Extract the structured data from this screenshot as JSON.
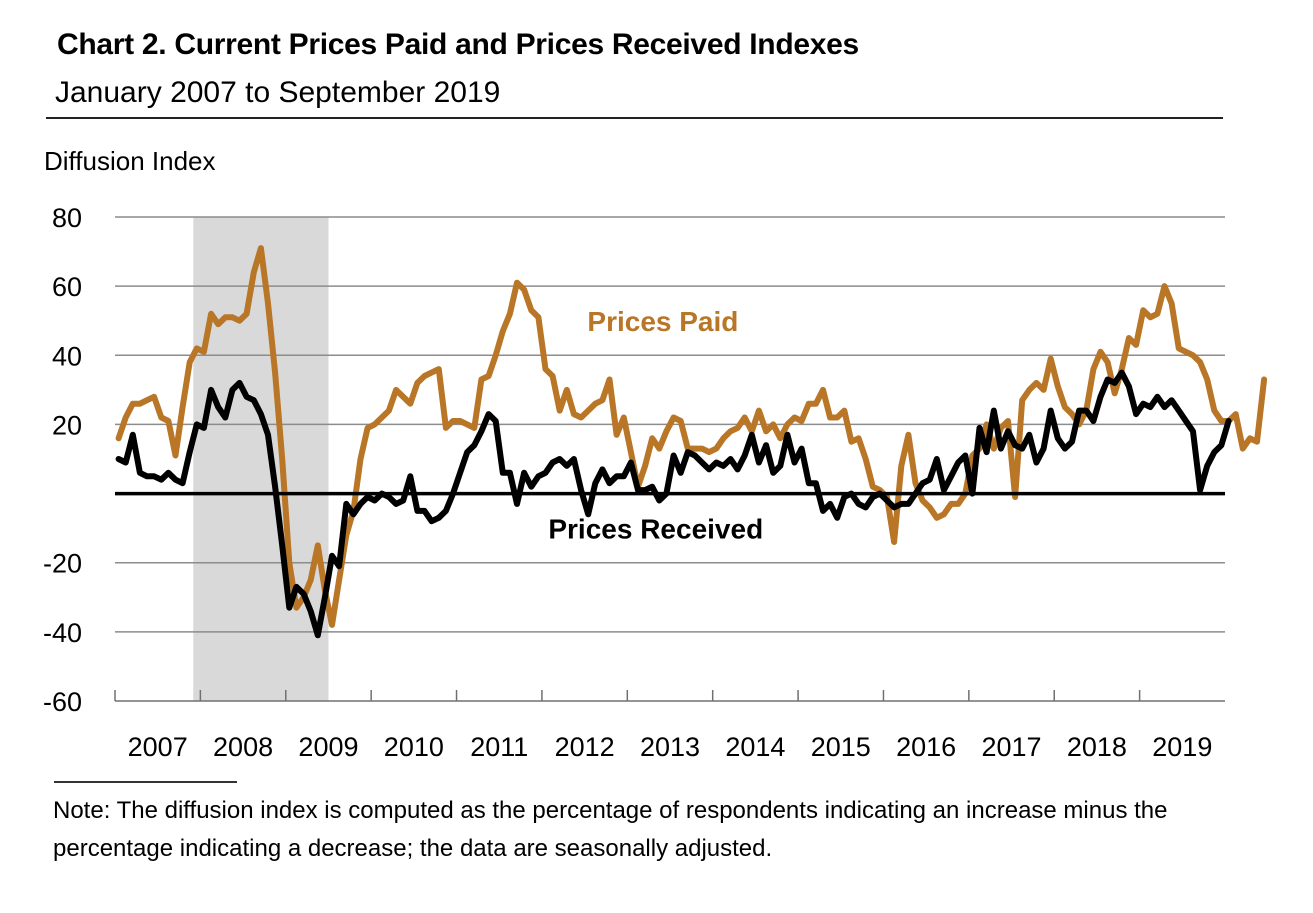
{
  "header": {
    "title": "Chart 2. Current Prices Paid and Prices Received Indexes",
    "subtitle": "January 2007 to September 2019"
  },
  "note": "Note: The diffusion index is computed as the percentage of respondents indicating an increase minus the percentage indicating a decrease; the data are seasonally adjusted.",
  "chart_data": {
    "type": "line",
    "title": "Chart 2. Current Prices Paid and Prices Received Indexes",
    "subtitle": "January 2007 to September 2019",
    "ylabel": "Diffusion Index",
    "xlabel": "",
    "ylim": [
      -60,
      80
    ],
    "yticks": [
      80,
      60,
      40,
      20,
      0,
      -20,
      -40,
      -60
    ],
    "xlim": [
      "2007-01",
      "2019-12"
    ],
    "xtick_labels": [
      "2007",
      "2008",
      "2009",
      "2010",
      "2011",
      "2012",
      "2013",
      "2014",
      "2015",
      "2016",
      "2017",
      "2018",
      "2019"
    ],
    "grid": "horizontal",
    "zero_line": true,
    "frequency": "monthly",
    "start": "2007-01",
    "end": "2019-09",
    "shaded_regions": [
      {
        "label": "recession",
        "from": "2007-12",
        "to": "2009-06",
        "color": "#d9d9d9"
      }
    ],
    "annotations": [
      {
        "text": "Prices Paid",
        "series": "Prices Paid",
        "at": {
          "x": "2013-06",
          "y": 47
        }
      },
      {
        "text": "Prices Received",
        "series": "Prices Received",
        "at": {
          "x": "2013-05",
          "y": -13
        }
      }
    ],
    "series": [
      {
        "name": "Prices Paid",
        "color": "#b87626",
        "values": [
          16,
          22,
          26,
          26,
          27,
          28,
          22,
          21,
          11,
          25,
          38,
          42,
          41,
          52,
          49,
          51,
          51,
          50,
          52,
          64,
          71,
          55,
          35,
          10,
          -20,
          -33,
          -30,
          -25,
          -15,
          -28,
          -38,
          -25,
          -12,
          -5,
          10,
          19,
          20,
          22,
          24,
          30,
          28,
          26,
          32,
          34,
          35,
          36,
          19,
          21,
          21,
          20,
          19,
          33,
          34,
          40,
          47,
          52,
          61,
          59,
          53,
          51,
          36,
          34,
          24,
          30,
          23,
          22,
          24,
          26,
          27,
          33,
          17,
          22,
          12,
          2,
          8,
          16,
          13,
          18,
          22,
          21,
          13,
          13,
          13,
          12,
          13,
          16,
          18,
          19,
          22,
          18,
          24,
          18,
          20,
          16,
          20,
          22,
          21,
          26,
          26,
          30,
          22,
          22,
          24,
          15,
          16,
          10,
          2,
          1,
          -1,
          -14,
          8,
          17,
          3,
          -2,
          -4,
          -7,
          -6,
          -3,
          -3,
          0,
          11,
          13,
          20,
          13,
          19,
          21,
          -1,
          27,
          30,
          32,
          30,
          39,
          31,
          25,
          23,
          20,
          24,
          36,
          41,
          38,
          29,
          36,
          45,
          43,
          53,
          51,
          52,
          60,
          55,
          42,
          41,
          40,
          38,
          33,
          24,
          21,
          21,
          23,
          13,
          16,
          15,
          33
        ]
      },
      {
        "name": "Prices Received",
        "color": "#000000",
        "values": [
          10,
          9,
          17,
          6,
          5,
          5,
          4,
          6,
          4,
          3,
          12,
          20,
          19,
          30,
          25,
          22,
          30,
          32,
          28,
          27,
          23,
          17,
          2,
          -15,
          -33,
          -27,
          -29,
          -34,
          -41,
          -30,
          -18,
          -21,
          -3,
          -6,
          -3,
          -1,
          -2,
          0,
          -1,
          -3,
          -2,
          5,
          -5,
          -5,
          -8,
          -7,
          -5,
          0,
          6,
          12,
          14,
          18,
          23,
          21,
          6,
          6,
          -3,
          6,
          2,
          5,
          6,
          9,
          10,
          8,
          10,
          1,
          -6,
          3,
          7,
          3,
          5,
          5,
          9,
          1,
          1,
          2,
          -2,
          0,
          11,
          6,
          12,
          11,
          9,
          7,
          9,
          8,
          10,
          7,
          11,
          17,
          9,
          14,
          6,
          8,
          17,
          9,
          13,
          3,
          3,
          -5,
          -3,
          -7,
          -1,
          0,
          -3,
          -4,
          -1,
          0,
          -2,
          -4,
          -3,
          -3,
          0,
          3,
          4,
          10,
          1,
          5,
          9,
          11,
          0,
          19,
          12,
          24,
          13,
          18,
          14,
          13,
          17,
          9,
          13,
          24,
          16,
          13,
          15,
          24,
          24,
          21,
          28,
          33,
          32,
          35,
          31,
          23,
          26,
          25,
          28,
          25,
          27,
          24,
          21,
          18,
          1,
          8,
          12,
          14,
          21
        ]
      }
    ]
  }
}
